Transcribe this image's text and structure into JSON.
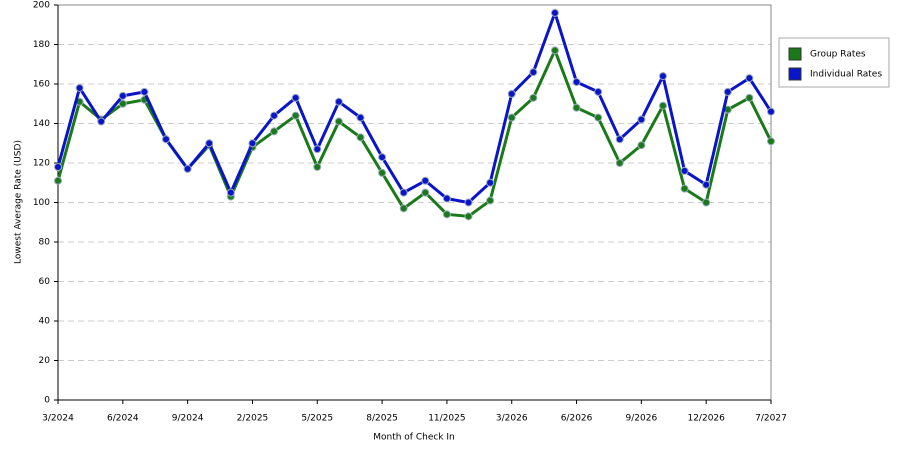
{
  "chart_data": {
    "type": "line",
    "x_label": "Month of Check In",
    "y_label": "Lowest Average Rate (USD)",
    "categories": [
      "3/2024",
      null,
      null,
      "6/2024",
      null,
      null,
      "9/2024",
      null,
      null,
      "2/2025",
      null,
      null,
      "5/2025",
      null,
      null,
      "8/2025",
      null,
      null,
      "11/2025",
      null,
      null,
      "3/2026",
      null,
      null,
      "6/2026",
      null,
      null,
      "9/2026",
      null,
      null,
      "12/2026",
      null,
      null,
      "7/2027"
    ],
    "series": [
      {
        "name": "Group Rates",
        "color": "#1a7a1a",
        "values": [
          111,
          151,
          142,
          150,
          152,
          132,
          117,
          129,
          103,
          128,
          136,
          144,
          118,
          141,
          133,
          115,
          97,
          105,
          94,
          93,
          101,
          143,
          153,
          177,
          148,
          143,
          120,
          129,
          149,
          107,
          100,
          147,
          153,
          131
        ]
      },
      {
        "name": "Individual Rates",
        "color": "#0a14c8",
        "values": [
          118,
          158,
          141,
          154,
          156,
          132,
          117,
          130,
          105,
          130,
          144,
          153,
          127,
          151,
          143,
          123,
          105,
          111,
          102,
          100,
          110,
          155,
          166,
          196,
          161,
          156,
          132,
          142,
          164,
          116,
          109,
          156,
          163,
          146
        ]
      }
    ],
    "ylim": [
      0,
      200
    ],
    "yticks": [
      0,
      20,
      40,
      60,
      80,
      100,
      120,
      140,
      160,
      180,
      200
    ],
    "grid": true
  }
}
